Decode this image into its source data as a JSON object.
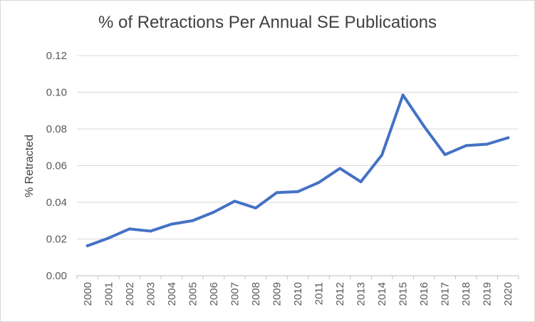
{
  "chart_data": {
    "type": "line",
    "title": "% of Retractions Per Annual SE Publications",
    "xlabel": "",
    "ylabel": "% Retracted",
    "categories": [
      "2000",
      "2001",
      "2002",
      "2003",
      "2004",
      "2005",
      "2006",
      "2007",
      "2008",
      "2009",
      "2010",
      "2011",
      "2012",
      "2013",
      "2014",
      "2015",
      "2016",
      "2017",
      "2018",
      "2019",
      "2020"
    ],
    "series": [
      {
        "values": [
          0.0163,
          0.0205,
          0.0255,
          0.0243,
          0.0281,
          0.03,
          0.0346,
          0.0406,
          0.0369,
          0.0453,
          0.0458,
          0.0508,
          0.0585,
          0.0512,
          0.0658,
          0.0985,
          0.0815,
          0.066,
          0.0709,
          0.0717,
          0.0752
        ],
        "color": "#4472c4"
      }
    ],
    "ylim": [
      0,
      0.12
    ],
    "yticks": [
      "0.00",
      "0.02",
      "0.04",
      "0.06",
      "0.08",
      "0.10",
      "0.12"
    ],
    "grid": "horizontal",
    "legend": "none"
  }
}
